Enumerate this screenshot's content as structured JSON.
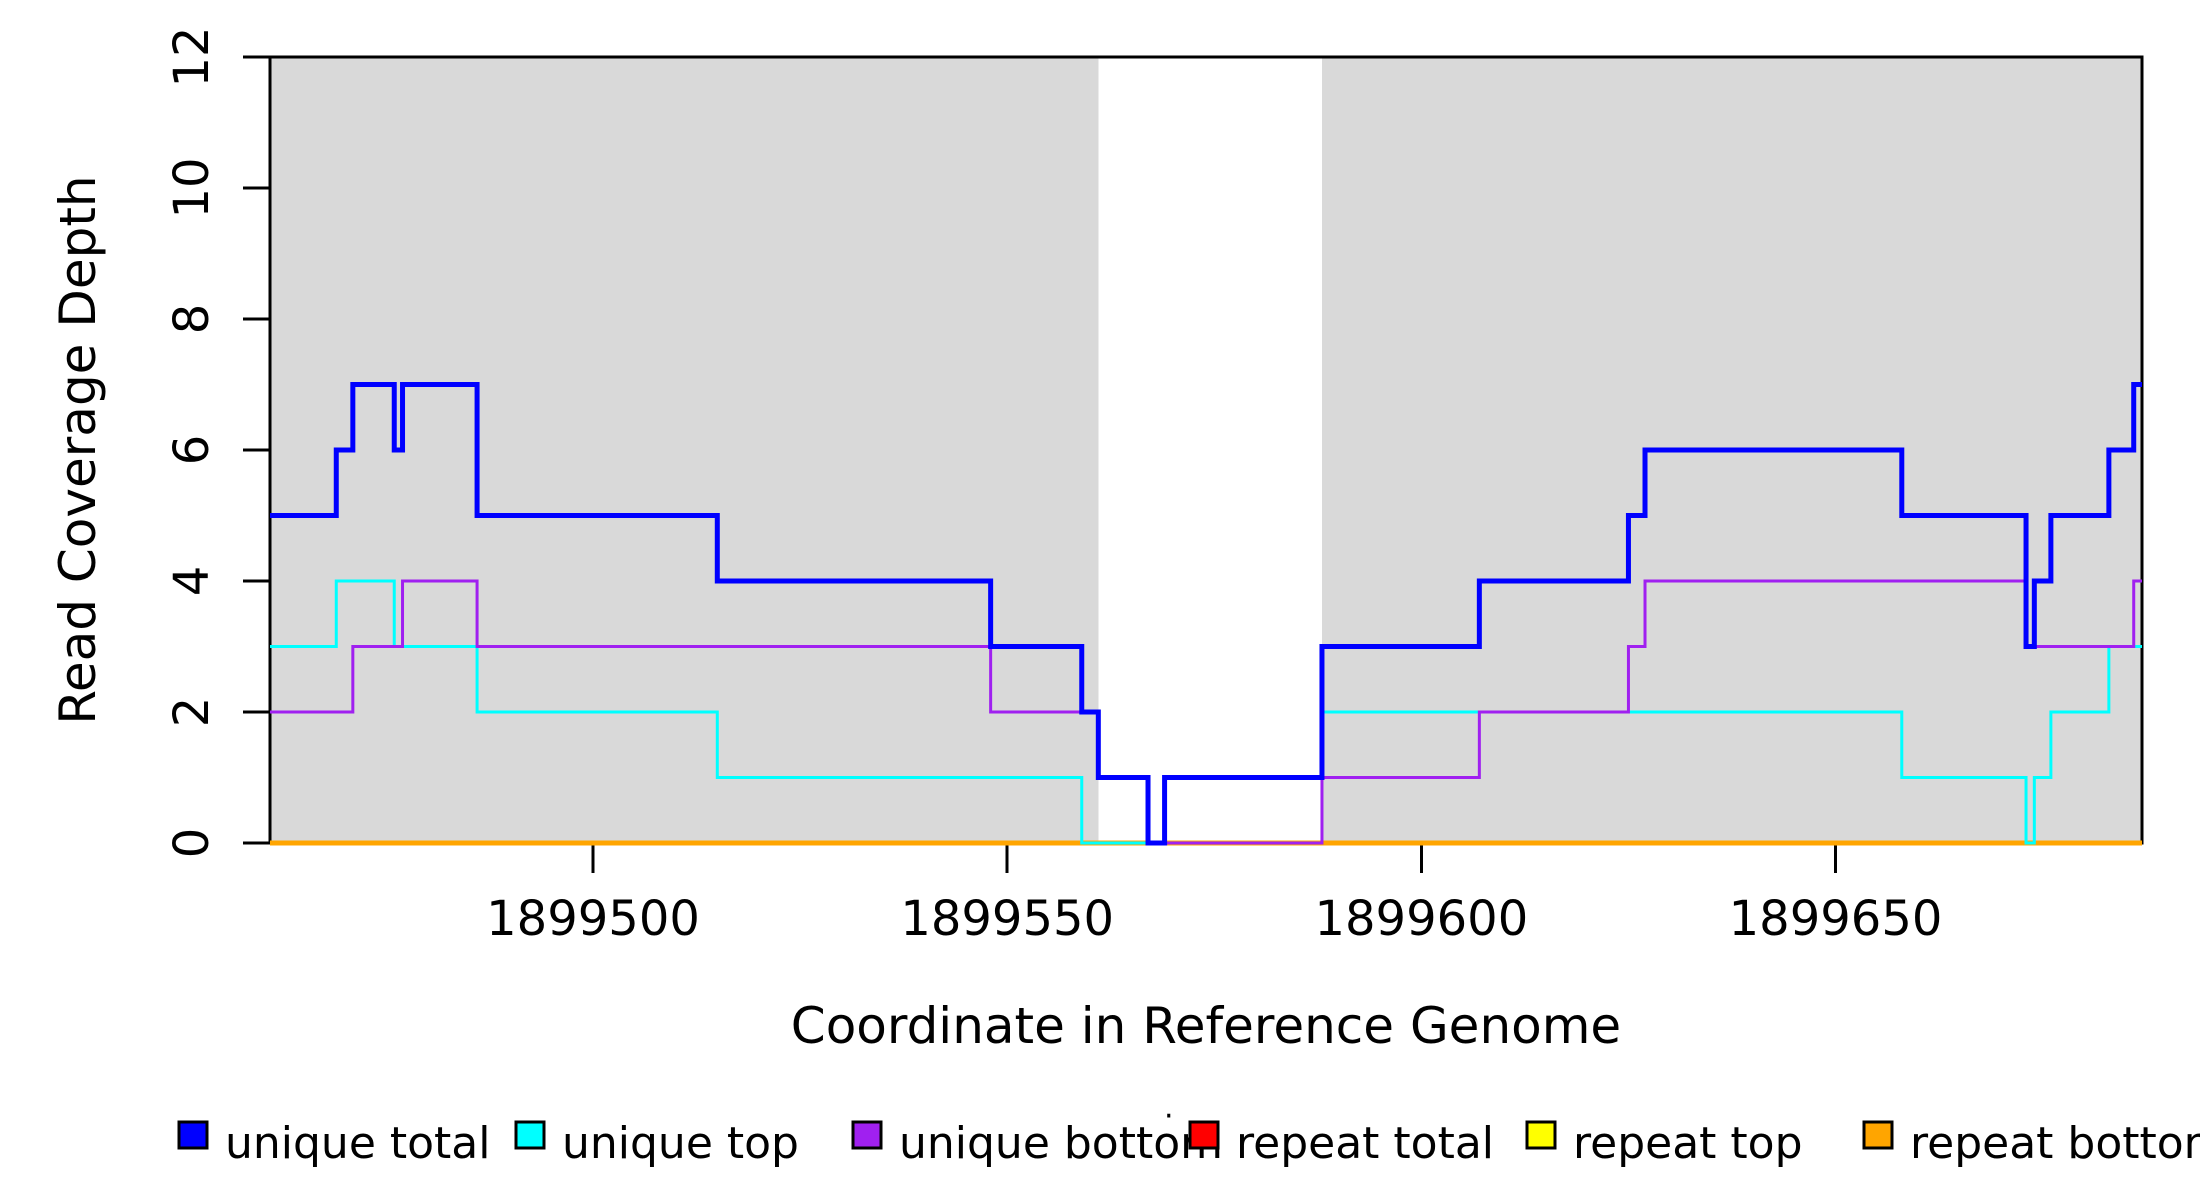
{
  "chart_data": {
    "type": "line",
    "subtype": "step",
    "title": "",
    "xlabel": "Coordinate in Reference Genome",
    "ylabel": "Read Coverage Depth",
    "xlim": [
      1899461,
      1899687
    ],
    "ylim": [
      0,
      12
    ],
    "x_ticks": [
      1899500,
      1899550,
      1899600,
      1899650
    ],
    "y_ticks": [
      0,
      2,
      4,
      6,
      8,
      10,
      12
    ],
    "grid": false,
    "background_color": "#ffffff",
    "shaded_regions": [
      {
        "name": "covered-region-left",
        "x0": 1899461,
        "x1": 1899561,
        "color": "#D9D9D9"
      },
      {
        "name": "covered-region-right",
        "x0": 1899588,
        "x1": 1899687,
        "color": "#D9D9D9"
      }
    ],
    "series": [
      {
        "name": "unique total",
        "color": "#0000FF",
        "line_width": 5,
        "start_depth": 5,
        "steps": [
          [
            1899469,
            6
          ],
          [
            1899471,
            7
          ],
          [
            1899476,
            6
          ],
          [
            1899477,
            7
          ],
          [
            1899486,
            5
          ],
          [
            1899515,
            4
          ],
          [
            1899548,
            3
          ],
          [
            1899559,
            2
          ],
          [
            1899561,
            1
          ],
          [
            1899567,
            0
          ],
          [
            1899569,
            1
          ],
          [
            1899588,
            3
          ],
          [
            1899607,
            4
          ],
          [
            1899625,
            5
          ],
          [
            1899627,
            6
          ],
          [
            1899658,
            5
          ],
          [
            1899673,
            3
          ],
          [
            1899674,
            4
          ],
          [
            1899676,
            5
          ],
          [
            1899683,
            6
          ],
          [
            1899686,
            7
          ]
        ]
      },
      {
        "name": "unique top",
        "color": "#00FFFF",
        "line_width": 3,
        "start_depth": 3,
        "steps": [
          [
            1899469,
            4
          ],
          [
            1899476,
            3
          ],
          [
            1899486,
            2
          ],
          [
            1899515,
            1
          ],
          [
            1899559,
            0
          ],
          [
            1899569,
            1
          ],
          [
            1899588,
            2
          ],
          [
            1899658,
            1
          ],
          [
            1899673,
            0
          ],
          [
            1899674,
            1
          ],
          [
            1899676,
            2
          ],
          [
            1899683,
            3
          ]
        ]
      },
      {
        "name": "unique bottom",
        "color": "#A020F0",
        "line_width": 3,
        "start_depth": 2,
        "steps": [
          [
            1899471,
            3
          ],
          [
            1899477,
            4
          ],
          [
            1899486,
            3
          ],
          [
            1899548,
            2
          ],
          [
            1899561,
            1
          ],
          [
            1899567,
            0
          ],
          [
            1899588,
            1
          ],
          [
            1899607,
            2
          ],
          [
            1899625,
            3
          ],
          [
            1899627,
            4
          ],
          [
            1899673,
            3
          ],
          [
            1899686,
            4
          ]
        ]
      },
      {
        "name": "repeat total",
        "color": "#FF0000",
        "line_width": 3,
        "start_depth": 0,
        "steps": []
      },
      {
        "name": "repeat top",
        "color": "#FFFF00",
        "line_width": 3,
        "start_depth": 0,
        "steps": []
      },
      {
        "name": "repeat bottom",
        "color": "#FFA500",
        "line_width": 5,
        "start_depth": 0,
        "steps": []
      }
    ],
    "draw_order": [
      "repeat total",
      "repeat top",
      "repeat bottom",
      "unique top",
      "unique bottom",
      "unique total"
    ],
    "legend": {
      "position": "bottom",
      "items": [
        {
          "label": "unique total",
          "color": "#0000FF"
        },
        {
          "label": "unique top",
          "color": "#00FFFF"
        },
        {
          "label": "unique bottom",
          "color": "#A020F0"
        },
        {
          "label": "repeat total",
          "color": "#FF0000"
        },
        {
          "label": "repeat top",
          "color": "#FFFF00"
        },
        {
          "label": "repeat bottom",
          "color": "#FFA500"
        }
      ]
    },
    "stray_mark": "·"
  }
}
